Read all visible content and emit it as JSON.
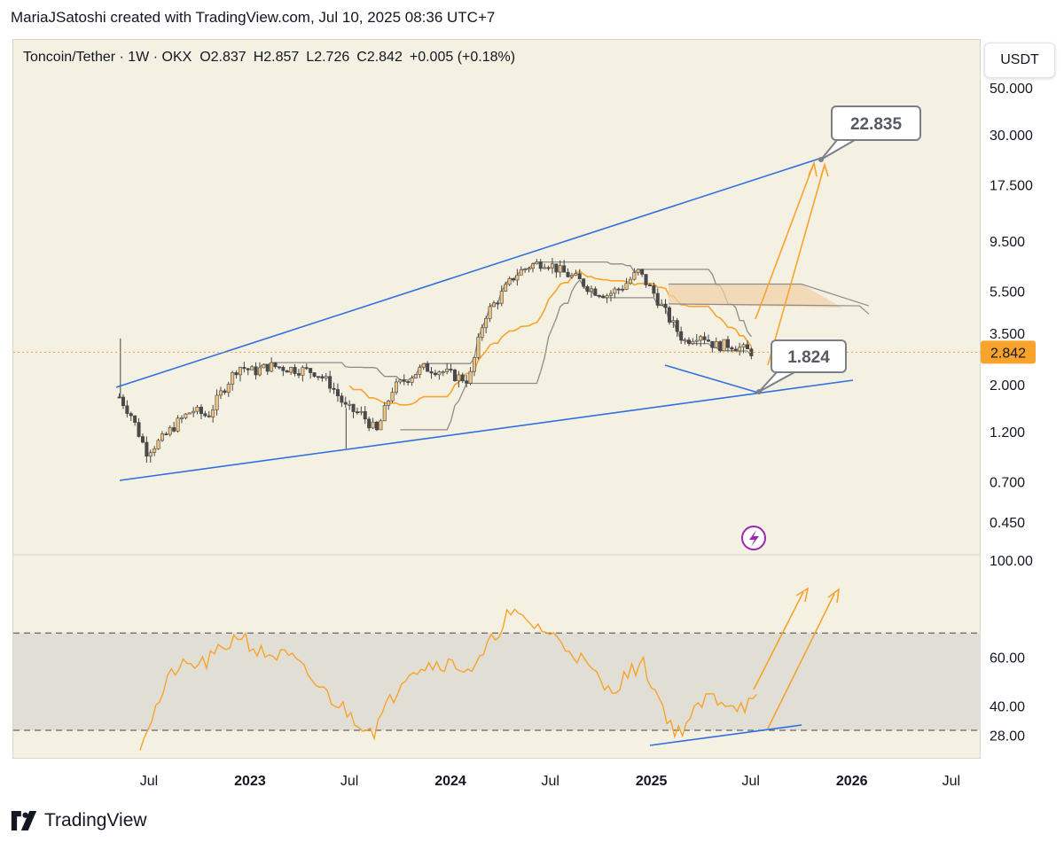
{
  "header": {
    "attribution": "MariaJSatoshi created with TradingView.com, Jul 10, 2025 08:36 UTC+7"
  },
  "legend": {
    "symbol": "Toncoin/Tether · 1W · OKX",
    "open_label": "O",
    "open": "2.837",
    "high_label": "H",
    "high": "2.857",
    "low_label": "L",
    "low": "2.726",
    "close_label": "C",
    "close": "2.842",
    "change": "+0.005 (+0.18%)"
  },
  "currency_button": "USDT",
  "footer": {
    "brand": "TradingView"
  },
  "colors": {
    "panel_bg": "#f4f1e3",
    "trend_line": "#2f6fdf",
    "projection": "#f7a32c",
    "rsi_line": "#f7a32c",
    "price_tag": "#f7a32c",
    "candle_up": "#f1c382",
    "candle_down": "#4a4a4a",
    "cloud": "#f1cfa5"
  },
  "chart_data": [
    {
      "type": "candlestick",
      "scale": "log",
      "ylim": [
        0.36,
        62
      ],
      "y_ticks": [
        "50.000",
        "30.000",
        "17.500",
        "9.500",
        "5.500",
        "3.500",
        "2.000",
        "1.200",
        "0.700",
        "0.450"
      ],
      "x_ticks": [
        "Jul",
        "2023",
        "Jul",
        "2024",
        "Jul",
        "2025",
        "Jul",
        "2026",
        "Jul"
      ],
      "last_price": "2.842",
      "annotations": [
        "22.835",
        "1.824"
      ],
      "close_path": [
        [
          "2022-05-08",
          1.75
        ],
        [
          "2022-05-29",
          1.45
        ],
        [
          "2022-06-26",
          0.97
        ],
        [
          "2022-07-24",
          1.1
        ],
        [
          "2022-08-21",
          1.32
        ],
        [
          "2022-09-18",
          1.52
        ],
        [
          "2022-10-16",
          1.42
        ],
        [
          "2022-11-13",
          1.9
        ],
        [
          "2022-12-11",
          2.45
        ],
        [
          "2023-01-08",
          2.3
        ],
        [
          "2023-02-05",
          2.45
        ],
        [
          "2023-03-05",
          2.4
        ],
        [
          "2023-04-02",
          2.35
        ],
        [
          "2023-04-30",
          2.3
        ],
        [
          "2023-05-28",
          2.0
        ],
        [
          "2023-06-25",
          1.55
        ],
        [
          "2023-07-23",
          1.45
        ],
        [
          "2023-08-20",
          1.2
        ],
        [
          "2023-09-17",
          1.9
        ],
        [
          "2023-10-15",
          2.15
        ],
        [
          "2023-11-12",
          2.4
        ],
        [
          "2023-12-10",
          2.35
        ],
        [
          "2024-01-07",
          2.2
        ],
        [
          "2024-02-04",
          2.1
        ],
        [
          "2024-03-03",
          4.2
        ],
        [
          "2024-03-31",
          5.2
        ],
        [
          "2024-04-28",
          6.6
        ],
        [
          "2024-05-26",
          7.3
        ],
        [
          "2024-06-23",
          7.6
        ],
        [
          "2024-07-21",
          6.8
        ],
        [
          "2024-08-18",
          6.3
        ],
        [
          "2024-09-15",
          5.6
        ],
        [
          "2024-10-13",
          5.3
        ],
        [
          "2024-11-10",
          5.8
        ],
        [
          "2024-12-08",
          6.8
        ],
        [
          "2025-01-05",
          5.4
        ],
        [
          "2025-02-02",
          4.1
        ],
        [
          "2025-03-02",
          3.2
        ],
        [
          "2025-03-30",
          3.5
        ],
        [
          "2025-04-27",
          3.05
        ],
        [
          "2025-05-25",
          3.1
        ],
        [
          "2025-06-22",
          2.9
        ],
        [
          "2025-07-06",
          2.842
        ]
      ]
    },
    {
      "type": "line",
      "name": "RSI",
      "ylim": [
        20,
        100
      ],
      "y_ticks": [
        "100.00",
        "60.00",
        "40.00",
        "28.00"
      ],
      "band": [
        30,
        70
      ],
      "x": [
        "2022-06",
        "2022-08",
        "2022-10",
        "2022-12",
        "2023-01",
        "2023-03",
        "2023-05",
        "2023-07",
        "2023-08",
        "2023-10",
        "2023-12",
        "2024-02",
        "2024-04",
        "2024-06",
        "2024-08",
        "2024-10",
        "2024-12",
        "2025-02",
        "2025-04",
        "2025-06",
        "2025-07"
      ],
      "values": [
        25,
        55,
        58,
        70,
        62,
        60,
        46,
        34,
        30,
        55,
        58,
        55,
        78,
        72,
        62,
        46,
        58,
        28,
        44,
        40,
        42
      ]
    }
  ]
}
